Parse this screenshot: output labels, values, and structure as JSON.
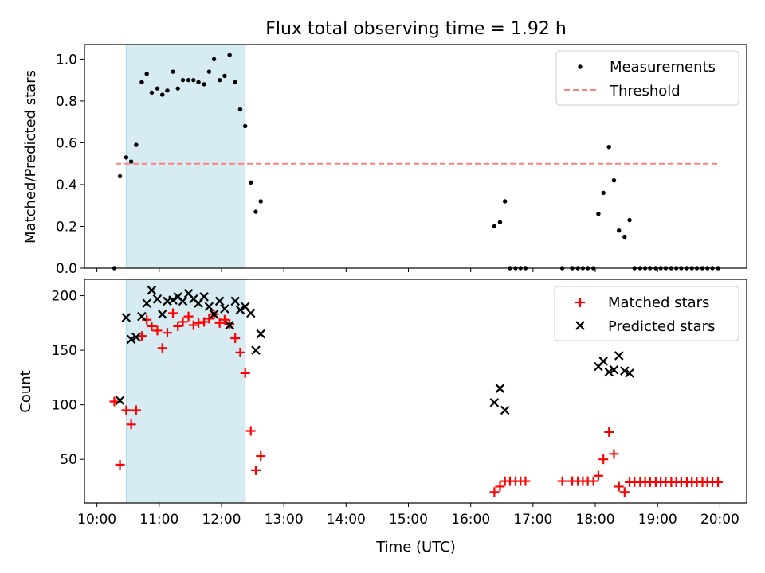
{
  "figure_title": "Flux total observing time = 1.92 h",
  "chart_data": [
    {
      "type": "scatter",
      "ylabel": "Matched/Predicted stars",
      "xlim": [
        9.8,
        20.43
      ],
      "ylim": [
        0,
        1.07
      ],
      "yticks": [
        0.0,
        0.2,
        0.4,
        0.6,
        0.8,
        1.0
      ],
      "ytick_labels": [
        "0.0",
        "0.2",
        "0.4",
        "0.6",
        "0.8",
        "1.0"
      ],
      "shaded_span": [
        10.47,
        12.38
      ],
      "shade_color": "#add8e6",
      "legend_position": "upper right",
      "series": [
        {
          "name": "Measurements",
          "marker": "dot",
          "color": "#000000",
          "x": [
            10.28,
            10.37,
            10.47,
            10.55,
            10.63,
            10.72,
            10.8,
            10.88,
            10.97,
            11.05,
            11.13,
            11.22,
            11.3,
            11.38,
            11.47,
            11.55,
            11.63,
            11.72,
            11.8,
            11.88,
            11.97,
            12.05,
            12.13,
            12.22,
            12.3,
            12.38,
            12.47,
            12.55,
            12.63,
            16.38,
            16.47,
            16.55,
            16.63,
            16.72,
            16.8,
            16.88,
            17.47,
            17.63,
            17.72,
            17.8,
            17.88,
            17.97,
            18.05,
            18.13,
            18.22,
            18.3,
            18.38,
            18.47,
            18.55,
            18.63,
            18.72,
            18.8,
            18.88,
            18.97,
            19.05,
            19.13,
            19.22,
            19.3,
            19.38,
            19.47,
            19.55,
            19.63,
            19.72,
            19.8,
            19.88,
            19.97
          ],
          "y": [
            0.0,
            0.44,
            0.53,
            0.51,
            0.59,
            0.89,
            0.93,
            0.84,
            0.86,
            0.83,
            0.85,
            0.94,
            0.86,
            0.9,
            0.9,
            0.9,
            0.89,
            0.88,
            0.94,
            1.0,
            0.9,
            0.92,
            1.02,
            0.89,
            0.76,
            0.68,
            0.41,
            0.27,
            0.32,
            0.2,
            0.22,
            0.32,
            0.0,
            0.0,
            0.0,
            0.0,
            0.0,
            0.0,
            0.0,
            0.0,
            0.0,
            0.0,
            0.26,
            0.36,
            0.58,
            0.42,
            0.18,
            0.15,
            0.23,
            0.0,
            0.0,
            0.0,
            0.0,
            0.0,
            0.0,
            0.0,
            0.0,
            0.0,
            0.0,
            0.0,
            0.0,
            0.0,
            0.0,
            0.0,
            0.0,
            0.0
          ]
        },
        {
          "name": "Threshold",
          "marker": "dashed-line",
          "color": "#ff8080",
          "x": [
            10.3,
            20.0
          ],
          "y": [
            0.5,
            0.5
          ]
        }
      ]
    },
    {
      "type": "scatter",
      "xlabel": "Time (UTC)",
      "ylabel": "Count",
      "xlim": [
        9.8,
        20.43
      ],
      "ylim": [
        10,
        215
      ],
      "xticks": [
        10,
        11,
        12,
        13,
        14,
        15,
        16,
        17,
        18,
        19,
        20
      ],
      "xtick_labels": [
        "10:00",
        "11:00",
        "12:00",
        "13:00",
        "14:00",
        "15:00",
        "16:00",
        "17:00",
        "18:00",
        "19:00",
        "20:00"
      ],
      "yticks": [
        50,
        100,
        150,
        200
      ],
      "ytick_labels": [
        "50",
        "100",
        "150",
        "200"
      ],
      "shaded_span": [
        10.47,
        12.38
      ],
      "shade_color": "#add8e6",
      "legend_position": "upper right",
      "series": [
        {
          "name": "Matched stars",
          "marker": "plus",
          "color": "#ff0000",
          "x": [
            10.28,
            10.37,
            10.47,
            10.55,
            10.63,
            10.72,
            10.8,
            10.88,
            10.97,
            11.05,
            11.13,
            11.22,
            11.3,
            11.38,
            11.47,
            11.55,
            11.63,
            11.72,
            11.8,
            11.88,
            11.97,
            12.05,
            12.13,
            12.22,
            12.3,
            12.38,
            12.47,
            12.55,
            12.63,
            16.38,
            16.47,
            16.55,
            16.63,
            16.72,
            16.8,
            16.88,
            17.47,
            17.63,
            17.72,
            17.8,
            17.88,
            17.97,
            18.05,
            18.13,
            18.22,
            18.3,
            18.38,
            18.47,
            18.55,
            18.63,
            18.72,
            18.8,
            18.88,
            18.97,
            19.05,
            19.13,
            19.22,
            19.3,
            19.38,
            19.47,
            19.55,
            19.63,
            19.72,
            19.8,
            19.88,
            19.97
          ],
          "y": [
            103,
            45,
            95,
            82,
            95,
            163,
            178,
            172,
            168,
            152,
            166,
            184,
            172,
            176,
            181,
            173,
            175,
            176,
            179,
            183,
            175,
            178,
            174,
            161,
            148,
            129,
            76,
            40,
            53,
            20,
            25,
            30,
            30,
            30,
            30,
            30,
            30,
            30,
            30,
            30,
            30,
            30,
            35,
            50,
            75,
            55,
            25,
            20,
            29,
            29,
            29,
            29,
            29,
            29,
            29,
            29,
            29,
            29,
            29,
            29,
            29,
            29,
            29,
            29,
            29,
            29
          ]
        },
        {
          "name": "Predicted stars",
          "marker": "x",
          "color": "#000000",
          "x": [
            10.37,
            10.47,
            10.55,
            10.63,
            10.72,
            10.8,
            10.88,
            10.97,
            11.05,
            11.13,
            11.22,
            11.3,
            11.38,
            11.47,
            11.55,
            11.63,
            11.72,
            11.8,
            11.88,
            11.97,
            12.05,
            12.13,
            12.22,
            12.3,
            12.38,
            12.47,
            12.55,
            12.63,
            16.38,
            16.47,
            16.55,
            18.05,
            18.13,
            18.22,
            18.3,
            18.38,
            18.47,
            18.55
          ],
          "y": [
            104,
            180,
            160,
            162,
            181,
            193,
            205,
            197,
            183,
            195,
            196,
            199,
            195,
            202,
            197,
            193,
            199,
            190,
            183,
            195,
            188,
            173,
            195,
            187,
            190,
            184,
            150,
            165,
            102,
            115,
            95,
            135,
            140,
            130,
            132,
            145,
            131,
            129
          ]
        }
      ]
    }
  ]
}
